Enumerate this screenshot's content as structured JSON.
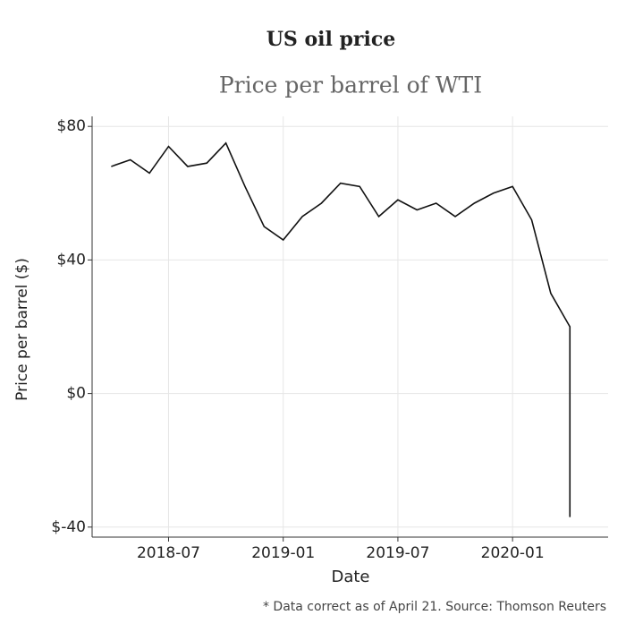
{
  "chart_data": {
    "type": "line",
    "title": "US oil price",
    "subtitle": "Price per barrel of WTI",
    "x_label": "Date",
    "y_label": "Price per barrel ($)",
    "note": "* Data correct as of April 21. Source: Thomson Reuters",
    "x": [
      "2018-04",
      "2018-05",
      "2018-06",
      "2018-07",
      "2018-08",
      "2018-09",
      "2018-10",
      "2018-11",
      "2018-12",
      "2019-01",
      "2019-02",
      "2019-03",
      "2019-04",
      "2019-05",
      "2019-06",
      "2019-07",
      "2019-08",
      "2019-09",
      "2019-10",
      "2019-11",
      "2019-12",
      "2020-01",
      "2020-02",
      "2020-03",
      "2020-04",
      "2020-04"
    ],
    "series": [
      {
        "name": "WTI",
        "color": "#111111",
        "values": [
          68,
          70,
          66,
          74,
          68,
          69,
          75,
          62,
          50,
          46,
          53,
          57,
          63,
          62,
          53,
          58,
          55,
          57,
          53,
          57,
          60,
          62,
          52,
          30,
          20,
          -37
        ]
      }
    ],
    "xlim": [
      "2018-03",
      "2020-06"
    ],
    "xticks": [
      "2018-07",
      "2019-01",
      "2019-07",
      "2020-01"
    ],
    "ylim": [
      -43,
      83
    ],
    "yticks": [
      {
        "value": -40,
        "label": "$-40"
      },
      {
        "value": 0,
        "label": "$0"
      },
      {
        "value": 40,
        "label": "$40"
      },
      {
        "value": 80,
        "label": "$80"
      }
    ],
    "grid": true
  }
}
